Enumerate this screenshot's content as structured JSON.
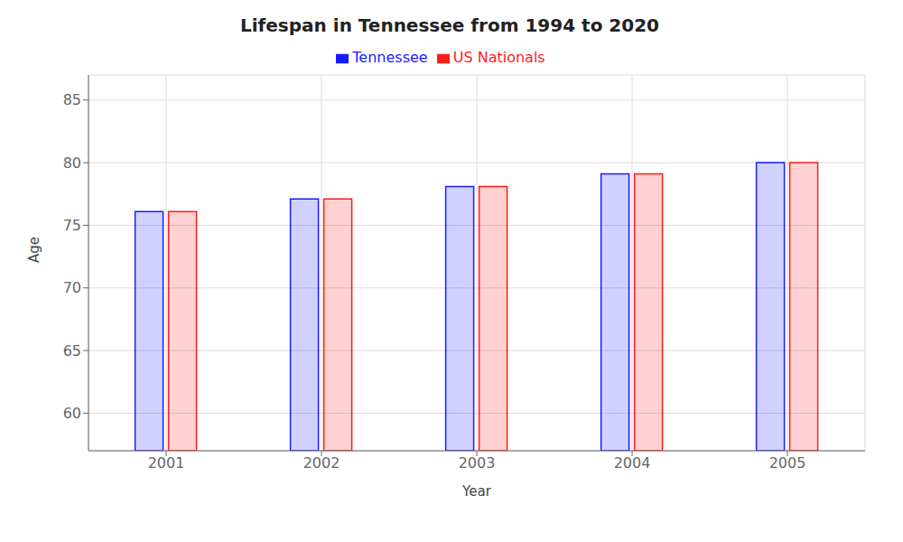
{
  "chart_data": {
    "type": "bar",
    "title": "Lifespan in Tennessee from 1994 to 2020",
    "x_label": "Year",
    "y_label": "Age",
    "categories": [
      "2001",
      "2002",
      "2003",
      "2004",
      "2005"
    ],
    "series": [
      {
        "name": "Tennessee",
        "color": "#1a1aff",
        "values": [
          76.1,
          77.1,
          78.1,
          79.1,
          80.0
        ]
      },
      {
        "name": "US Nationals",
        "color": "#ff1a1a",
        "values": [
          76.1,
          77.1,
          78.1,
          79.1,
          80.0
        ]
      }
    ],
    "ylim": [
      57,
      87
    ],
    "yticks": [
      60,
      65,
      70,
      75,
      80,
      85
    ],
    "grid": true,
    "legend": "top"
  }
}
